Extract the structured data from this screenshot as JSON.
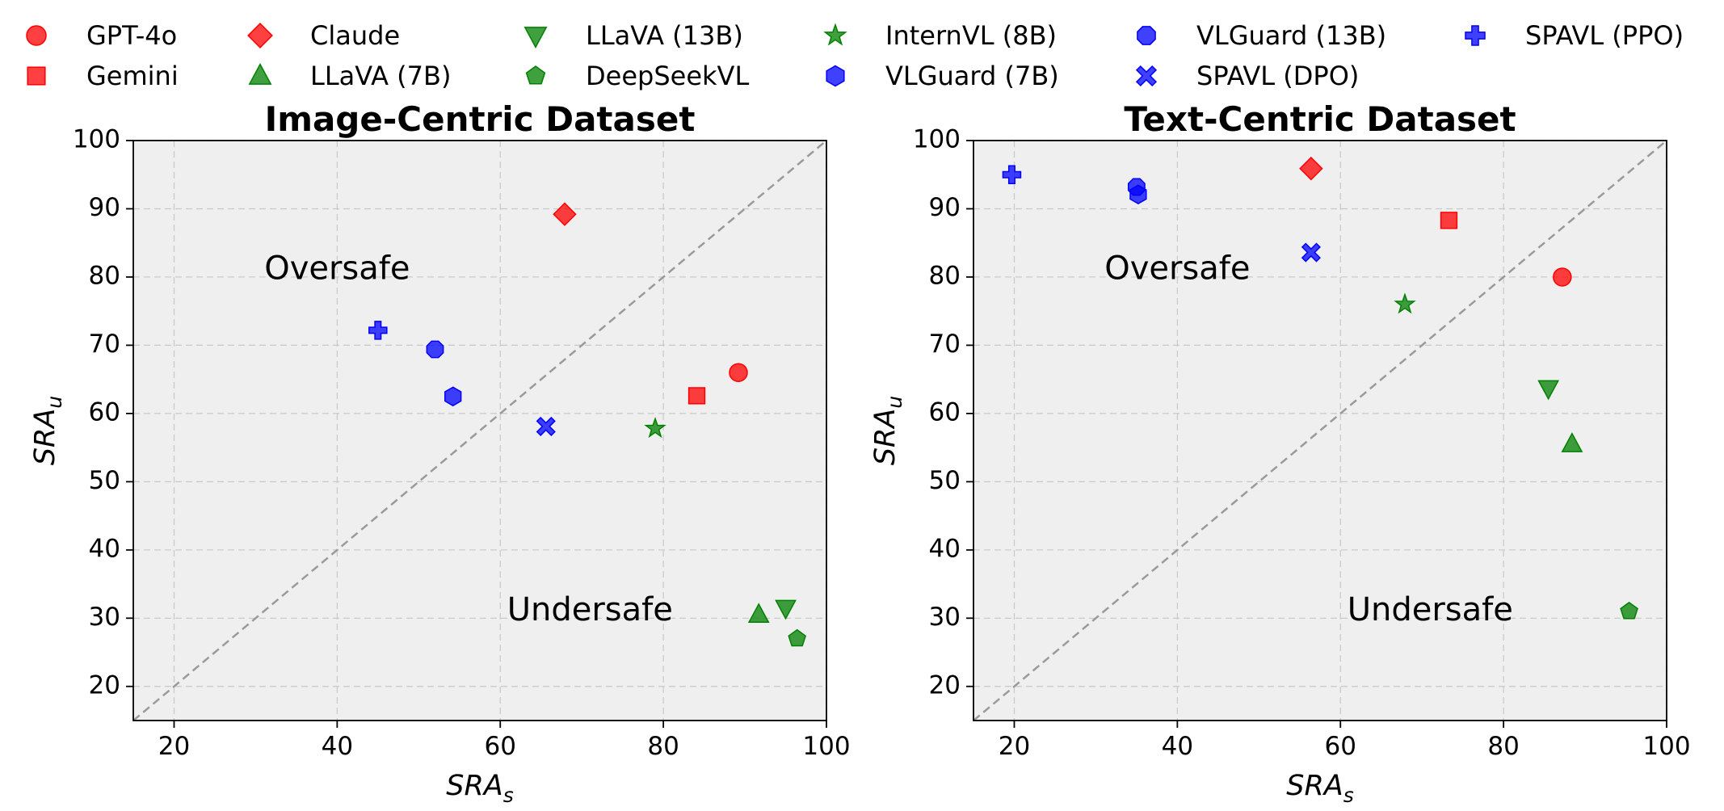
{
  "legend": [
    {
      "label": "GPT-4o",
      "marker": "circle",
      "color": "#ff0000"
    },
    {
      "label": "Gemini",
      "marker": "square",
      "color": "#ff0000"
    },
    {
      "label": "Claude",
      "marker": "diamond",
      "color": "#ff0000"
    },
    {
      "label": "LLaVA (7B)",
      "marker": "triangle-up",
      "color": "#008000"
    },
    {
      "label": "LLaVA (13B)",
      "marker": "triangle-down",
      "color": "#008000"
    },
    {
      "label": "DeepSeekVL",
      "marker": "pentagon",
      "color": "#008000"
    },
    {
      "label": "InternVL (8B)",
      "marker": "star",
      "color": "#008000"
    },
    {
      "label": "VLGuard (7B)",
      "marker": "hexagon",
      "color": "#0000ff"
    },
    {
      "label": "VLGuard (13B)",
      "marker": "octagon",
      "color": "#0000ff"
    },
    {
      "label": "SPAVL (DPO)",
      "marker": "x",
      "color": "#0000ff"
    },
    {
      "label": "SPAVL (PPO)",
      "marker": "plus",
      "color": "#0000ff"
    }
  ],
  "chart_data": [
    {
      "type": "scatter",
      "title": "Image-Centric Dataset",
      "xlabel": "SRA",
      "xlabel_sub": "s",
      "ylabel": "SRA",
      "ylabel_sub": "u",
      "xlim": [
        15,
        100
      ],
      "ylim": [
        15,
        100
      ],
      "xticks": [
        20,
        40,
        60,
        80,
        100
      ],
      "yticks": [
        20,
        30,
        40,
        50,
        60,
        70,
        80,
        90,
        100
      ],
      "grid": true,
      "diagonal": true,
      "annotations": [
        {
          "text": "Oversafe",
          "x": 40,
          "y": 81
        },
        {
          "text": "Undersafe",
          "x": 71,
          "y": 31
        }
      ],
      "points": [
        {
          "label": "GPT-4o",
          "x": 89.2,
          "y": 66.0
        },
        {
          "label": "Gemini",
          "x": 84.1,
          "y": 62.6
        },
        {
          "label": "Claude",
          "x": 67.9,
          "y": 89.2
        },
        {
          "label": "LLaVA (7B)",
          "x": 91.7,
          "y": 30.5
        },
        {
          "label": "LLaVA (13B)",
          "x": 95.0,
          "y": 31.5
        },
        {
          "label": "DeepSeekVL",
          "x": 96.4,
          "y": 27.0
        },
        {
          "label": "InternVL (8B)",
          "x": 79.0,
          "y": 57.8
        },
        {
          "label": "VLGuard (7B)",
          "x": 54.2,
          "y": 62.5
        },
        {
          "label": "VLGuard (13B)",
          "x": 52.0,
          "y": 69.4
        },
        {
          "label": "SPAVL (DPO)",
          "x": 65.6,
          "y": 58.1
        },
        {
          "label": "SPAVL (PPO)",
          "x": 45.0,
          "y": 72.2
        }
      ]
    },
    {
      "type": "scatter",
      "title": "Text-Centric Dataset",
      "xlabel": "SRA",
      "xlabel_sub": "s",
      "ylabel": "SRA",
      "ylabel_sub": "u",
      "xlim": [
        15,
        100
      ],
      "ylim": [
        15,
        100
      ],
      "xticks": [
        20,
        40,
        60,
        80,
        100
      ],
      "yticks": [
        20,
        30,
        40,
        50,
        60,
        70,
        80,
        90,
        100
      ],
      "grid": true,
      "diagonal": true,
      "annotations": [
        {
          "text": "Oversafe",
          "x": 40,
          "y": 81
        },
        {
          "text": "Undersafe",
          "x": 71,
          "y": 31
        }
      ],
      "points": [
        {
          "label": "GPT-4o",
          "x": 87.2,
          "y": 80.0
        },
        {
          "label": "Gemini",
          "x": 73.3,
          "y": 88.3
        },
        {
          "label": "Claude",
          "x": 56.4,
          "y": 95.9
        },
        {
          "label": "LLaVA (7B)",
          "x": 88.4,
          "y": 55.5
        },
        {
          "label": "LLaVA (13B)",
          "x": 85.5,
          "y": 63.7
        },
        {
          "label": "DeepSeekVL",
          "x": 95.4,
          "y": 31.0
        },
        {
          "label": "InternVL (8B)",
          "x": 67.9,
          "y": 76.0
        },
        {
          "label": "VLGuard (7B)",
          "x": 35.2,
          "y": 92.1
        },
        {
          "label": "VLGuard (13B)",
          "x": 35.0,
          "y": 93.2
        },
        {
          "label": "SPAVL (DPO)",
          "x": 56.4,
          "y": 83.6
        },
        {
          "label": "SPAVL (PPO)",
          "x": 19.7,
          "y": 95.0
        }
      ]
    }
  ]
}
